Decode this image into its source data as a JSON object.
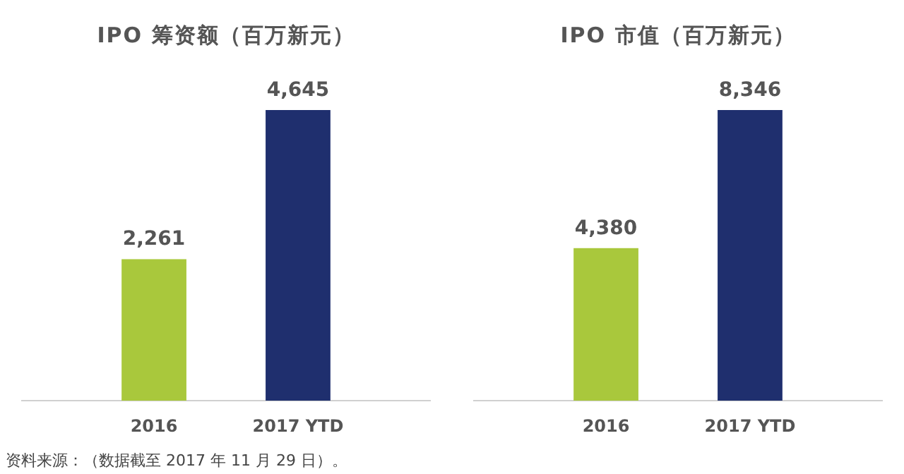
{
  "chart_data": [
    {
      "type": "bar",
      "title": "IPO 筹资额（百万新元）",
      "categories": [
        "2016",
        "2017 YTD"
      ],
      "values": [
        2261,
        4645
      ],
      "colors": [
        "#a9c83c",
        "#1f2f6e"
      ],
      "value_labels": [
        "2,261",
        "4,645"
      ],
      "annotations": [
        "资料来源：（数据截至 2017 年 11 月 29 日）。"
      ]
    },
    {
      "type": "bar",
      "title": "IPO 市值（百万新元）",
      "categories": [
        "2016",
        "2017 YTD"
      ],
      "values": [
        4380,
        8346
      ],
      "colors": [
        "#a9c83c",
        "#1f2f6e"
      ],
      "value_labels": [
        "4,380",
        "8,346"
      ]
    }
  ]
}
